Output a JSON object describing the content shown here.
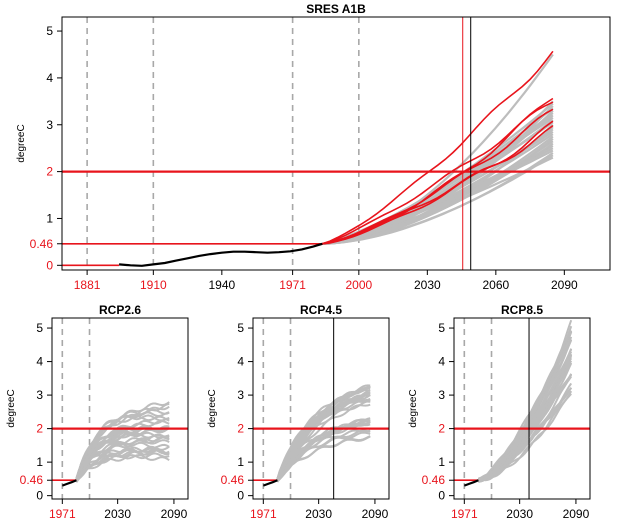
{
  "colors": {
    "red": "#e8141c",
    "gray": "#bdbdbd",
    "observed": "#000000",
    "dashed": "#a8a8a8",
    "frame": "#000000"
  },
  "chart_data": [
    {
      "type": "line",
      "title": "SRES A1B",
      "ylabel": "degreeC",
      "xlim": [
        1870,
        2110
      ],
      "ylim": [
        -0.1,
        5.3
      ],
      "xticks": [
        1881,
        1910,
        1940,
        1971,
        2000,
        2030,
        2060,
        2090
      ],
      "xtick_labels": [
        "1881",
        "1910",
        "1940",
        "1971",
        "2000",
        "2030",
        "2060",
        "2090"
      ],
      "red_xticks": [
        1881,
        1910,
        1971,
        2000
      ],
      "yticks": [
        0,
        0.46,
        1,
        2,
        3,
        4,
        5
      ],
      "ytick_labels": [
        "0",
        "0.46",
        "1",
        "2",
        "3",
        "4",
        "5"
      ],
      "red_yticks": [
        0,
        0.46,
        2
      ],
      "threshold_y": 2,
      "dashed_x": [
        1881,
        1910,
        1971,
        2000
      ],
      "vlines": [
        {
          "x": 2045.5,
          "color": "red"
        },
        {
          "x": 2049,
          "color": "black"
        }
      ],
      "observed": {
        "x": [
          1895,
          1900,
          1905,
          1910,
          1915,
          1920,
          1925,
          1930,
          1935,
          1940,
          1945,
          1950,
          1955,
          1960,
          1965,
          1970,
          1975,
          1980,
          1984
        ],
        "y": [
          0.02,
          0.0,
          -0.01,
          0.02,
          0.05,
          0.1,
          0.15,
          0.2,
          0.24,
          0.27,
          0.29,
          0.29,
          0.28,
          0.27,
          0.28,
          0.3,
          0.34,
          0.4,
          0.46
        ]
      },
      "start_x": 1984,
      "start_y": 0.46,
      "end_x": 2085,
      "ensemble": {
        "gray_end_values": [
          2.3,
          2.35,
          2.4,
          2.45,
          2.5,
          2.55,
          2.6,
          2.65,
          2.7,
          2.75,
          2.8,
          2.85,
          2.9,
          2.95,
          3.0,
          3.05,
          3.1,
          3.15,
          3.2,
          3.25,
          3.3,
          3.35,
          3.4,
          3.45,
          3.5,
          4.5
        ],
        "red_end_values": [
          2.9,
          3.0,
          3.3,
          3.5,
          3.6,
          4.55
        ]
      }
    },
    {
      "type": "line",
      "title": "RCP2.6",
      "ylabel": "degreeC",
      "xlim": [
        1960,
        2105
      ],
      "ylim": [
        -0.1,
        5.3
      ],
      "xticks": [
        1971,
        2030,
        2090
      ],
      "xtick_labels": [
        "1971",
        "2030",
        "2090"
      ],
      "red_xticks": [
        1971
      ],
      "yticks": [
        0,
        0.46,
        1,
        2,
        3,
        4,
        5
      ],
      "ytick_labels": [
        "0",
        "0.46",
        "1",
        "2",
        "3",
        "4",
        "5"
      ],
      "red_yticks": [
        0.46,
        2
      ],
      "threshold_y": 2,
      "dashed_x": [
        1971,
        2000
      ],
      "vlines": [],
      "observed": {
        "x": [
          1971,
          1976,
          1981,
          1986
        ],
        "y": [
          0.3,
          0.35,
          0.4,
          0.46
        ]
      },
      "start_x": 1986,
      "start_y": 0.46,
      "end_x": 2085,
      "ensemble": {
        "peak_low": 1.1,
        "peak_high": 2.6,
        "end_low": 1.1,
        "end_high": 2.7
      }
    },
    {
      "type": "line",
      "title": "RCP4.5",
      "ylabel": "degreeC",
      "xlim": [
        1960,
        2105
      ],
      "ylim": [
        -0.1,
        5.3
      ],
      "xticks": [
        1971,
        2030,
        2090
      ],
      "xtick_labels": [
        "1971",
        "2030",
        "2090"
      ],
      "red_xticks": [
        1971
      ],
      "yticks": [
        0,
        0.46,
        1,
        2,
        3,
        4,
        5
      ],
      "ytick_labels": [
        "0",
        "0.46",
        "1",
        "2",
        "3",
        "4",
        "5"
      ],
      "red_yticks": [
        0.46,
        2
      ],
      "threshold_y": 2,
      "dashed_x": [
        1971,
        2000
      ],
      "vlines": [
        {
          "x": 2046,
          "color": "black"
        }
      ],
      "observed": {
        "x": [
          1971,
          1976,
          1981,
          1986
        ],
        "y": [
          0.3,
          0.35,
          0.4,
          0.46
        ]
      },
      "start_x": 1986,
      "start_y": 0.46,
      "end_x": 2085,
      "ensemble": {
        "end_low": 1.7,
        "end_high": 3.4
      }
    },
    {
      "type": "line",
      "title": "RCP8.5",
      "ylabel": "degreeC",
      "xlim": [
        1960,
        2105
      ],
      "ylim": [
        -0.1,
        5.3
      ],
      "xticks": [
        1971,
        2030,
        2090
      ],
      "xtick_labels": [
        "1971",
        "2030",
        "2090"
      ],
      "red_xticks": [
        1971
      ],
      "yticks": [
        0,
        0.46,
        1,
        2,
        3,
        4,
        5
      ],
      "ytick_labels": [
        "0",
        "0.46",
        "1",
        "2",
        "3",
        "4",
        "5"
      ],
      "red_yticks": [
        0.46,
        2
      ],
      "threshold_y": 2,
      "dashed_x": [
        1971,
        2000
      ],
      "vlines": [
        {
          "x": 2040,
          "color": "black"
        }
      ],
      "observed": {
        "x": [
          1971,
          1976,
          1981,
          1986
        ],
        "y": [
          0.3,
          0.35,
          0.4,
          0.46
        ]
      },
      "start_x": 1986,
      "start_y": 0.46,
      "end_x": 2085,
      "ensemble": {
        "end_low": 3.0,
        "end_high": 5.2
      }
    }
  ]
}
